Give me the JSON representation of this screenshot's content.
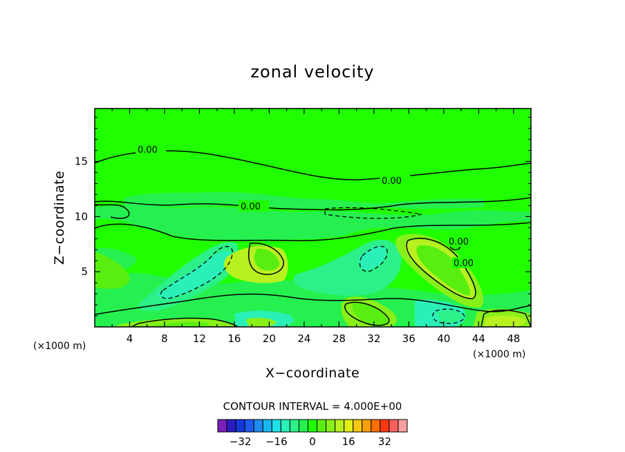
{
  "chart_data": {
    "type": "heatmap",
    "title": "zonal velocity",
    "xlabel": "X−coordinate",
    "ylabel": "Z−coordinate",
    "x_units": "(×1000 m)",
    "y_units": "(×1000 m)",
    "xlim": [
      0,
      50
    ],
    "ylim": [
      0,
      19.8
    ],
    "x_ticks": [
      "4",
      "8",
      "12",
      "16",
      "20",
      "24",
      "28",
      "32",
      "36",
      "40",
      "44",
      "48"
    ],
    "y_ticks": [
      "5",
      "10",
      "15"
    ],
    "contour_interval_text": "CONTOUR INTERVAL = 4.000E+00",
    "contour_labels": [
      "0.00",
      "0.00",
      "0.00",
      "0.00",
      "0.00"
    ],
    "colorbar": {
      "levels": [
        -40,
        -36,
        -32,
        -28,
        -24,
        -20,
        -16,
        -12,
        -8,
        -4,
        0,
        4,
        8,
        12,
        16,
        20,
        24,
        28,
        32,
        36,
        40
      ],
      "colors": [
        "#7a1fb8",
        "#2a1cc0",
        "#1437d8",
        "#1e5cf0",
        "#1f8cf0",
        "#1ab8f0",
        "#20e0e8",
        "#2af0b8",
        "#2cf088",
        "#26f050",
        "#20ff00",
        "#58ef10",
        "#88f018",
        "#b8f020",
        "#e0f018",
        "#f4c810",
        "#f8a008",
        "#ff7000",
        "#ff3810",
        "#f86060",
        "#f8a0a0"
      ],
      "tick_labels": [
        "−32",
        "−16",
        "0",
        "16",
        "32"
      ],
      "tick_values": [
        -32,
        -16,
        0,
        16,
        32
      ]
    },
    "features": [
      {
        "kind": "background",
        "value": 0
      },
      {
        "kind": "band",
        "value": -4
      },
      {
        "kind": "band",
        "value": -4
      },
      {
        "kind": "band",
        "value": -4
      },
      {
        "kind": "band",
        "value": -4
      },
      {
        "kind": "band",
        "value": -8
      },
      {
        "kind": "band",
        "value": -12
      },
      {
        "kind": "band",
        "value": -12
      },
      {
        "kind": "band",
        "value": -8
      },
      {
        "kind": "band",
        "value": -12
      },
      {
        "kind": "band",
        "value": -12
      },
      {
        "kind": "band",
        "value": -8
      },
      {
        "kind": "band",
        "value": -12
      },
      {
        "kind": "band",
        "value": 8
      },
      {
        "kind": "band",
        "value": 4
      },
      {
        "kind": "band",
        "value": 12
      },
      {
        "kind": "band",
        "value": 4
      },
      {
        "kind": "band",
        "value": 8
      },
      {
        "kind": "band",
        "value": 12
      },
      {
        "kind": "band",
        "value": 4
      },
      {
        "kind": "band",
        "value": 8
      },
      {
        "kind": "band",
        "value": 4
      },
      {
        "kind": "band",
        "value": 8
      },
      {
        "kind": "band",
        "value": 12
      },
      {
        "kind": "band",
        "value": 4
      },
      {
        "kind": "band",
        "value": 8
      },
      {
        "kind": "band",
        "value": 4
      }
    ]
  }
}
